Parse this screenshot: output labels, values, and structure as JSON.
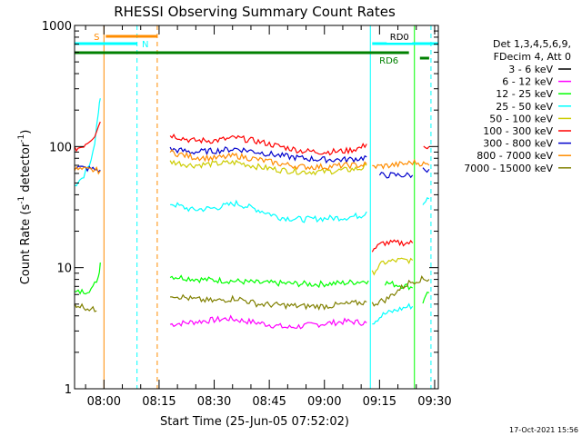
{
  "chart_data": {
    "type": "line",
    "title": "RHESSI Observing Summary Count Rates",
    "xlabel": "Start Time (25-Jun-05 07:52:02)",
    "ylabel_main": "Count Rate (s",
    "ylabel_sup1": "-1",
    "ylabel_mid": " detector",
    "ylabel_sup2": "-1",
    "ylabel_end": ")",
    "yscale": "log",
    "ylim": [
      1,
      1000
    ],
    "xlim_minutes": [
      0,
      99
    ],
    "y_ticks": [
      {
        "value": 1,
        "label": "1"
      },
      {
        "value": 10,
        "label": "10"
      },
      {
        "value": 100,
        "label": "100"
      },
      {
        "value": 1000,
        "label": "1000"
      }
    ],
    "x_ticks": [
      {
        "min": 8,
        "label": "08:00"
      },
      {
        "min": 23,
        "label": "08:15"
      },
      {
        "min": 38,
        "label": "08:30"
      },
      {
        "min": 53,
        "label": "08:45"
      },
      {
        "min": 68,
        "label": "09:00"
      },
      {
        "min": 83,
        "label": "09:15"
      },
      {
        "min": 98,
        "label": "09:30"
      }
    ],
    "legend_header": [
      "Det 1,3,4,5,6,9,",
      "FDecim 4, Att 0"
    ],
    "legend_placement": "right",
    "series": [
      {
        "name": "3 - 6 keV",
        "color": "#000000",
        "segments": []
      },
      {
        "name": "6 - 12 keV",
        "color": "#ff00ff",
        "segments": [
          [
            [
              26,
              3.4
            ],
            [
              34,
              3.6
            ],
            [
              42,
              3.8
            ],
            [
              50,
              3.5
            ],
            [
              58,
              3.2
            ],
            [
              66,
              3.4
            ],
            [
              74,
              3.6
            ],
            [
              79.5,
              3.5
            ]
          ]
        ]
      },
      {
        "name": "12 - 25 keV",
        "color": "#00ff00",
        "segments": [
          [
            [
              0,
              6.2
            ],
            [
              3,
              6.4
            ],
            [
              5,
              6.8
            ],
            [
              6.5,
              8.5
            ],
            [
              7,
              11
            ]
          ],
          [
            [
              26,
              8.5
            ],
            [
              34,
              8
            ],
            [
              42,
              7.8
            ],
            [
              50,
              7.5
            ],
            [
              58,
              7.4
            ],
            [
              66,
              7.3
            ],
            [
              74,
              7.5
            ],
            [
              80,
              7.8
            ]
          ],
          [
            [
              84.5,
              7.5
            ],
            [
              88,
              7.2
            ],
            [
              91,
              7
            ],
            [
              92,
              6.8
            ]
          ],
          [
            [
              94.8,
              5.2
            ],
            [
              95.5,
              6
            ],
            [
              96.5,
              6.2
            ]
          ]
        ]
      },
      {
        "name": "25 - 50 keV",
        "color": "#00ffff",
        "segments": [
          [
            [
              0,
              48
            ],
            [
              2,
              52
            ],
            [
              4,
              70
            ],
            [
              5.5,
              110
            ],
            [
              6.5,
              190
            ],
            [
              7,
              250
            ]
          ],
          [
            [
              26,
              34
            ],
            [
              32,
              30
            ],
            [
              38,
              31
            ],
            [
              44,
              34
            ],
            [
              50,
              30
            ],
            [
              56,
              26
            ],
            [
              62,
              25
            ],
            [
              68,
              25.5
            ],
            [
              74,
              26
            ],
            [
              78,
              27
            ],
            [
              79.5,
              29
            ]
          ],
          [
            [
              81,
              3.5
            ],
            [
              84,
              4.1
            ],
            [
              88,
              4.5
            ],
            [
              91,
              4.8
            ],
            [
              92,
              4.8
            ]
          ],
          [
            [
              94.8,
              33
            ],
            [
              95.5,
              36
            ],
            [
              96.5,
              37
            ]
          ]
        ]
      },
      {
        "name": "50 - 100 keV",
        "color": "#cccc00",
        "segments": [
          [
            [
              26,
              75
            ],
            [
              32,
              70
            ],
            [
              38,
              72
            ],
            [
              44,
              74
            ],
            [
              50,
              68
            ],
            [
              56,
              64
            ],
            [
              62,
              62
            ],
            [
              68,
              62
            ],
            [
              74,
              64
            ],
            [
              78,
              66
            ],
            [
              79.5,
              70
            ]
          ],
          [
            [
              81,
              9
            ],
            [
              84,
              11
            ],
            [
              88,
              11.5
            ],
            [
              92,
              11.5
            ]
          ]
        ]
      },
      {
        "name": "100 - 300 keV",
        "color": "#ff0000",
        "segments": [
          [
            [
              0,
              95
            ],
            [
              2,
              100
            ],
            [
              4,
              112
            ],
            [
              5.5,
              125
            ],
            [
              7,
              160
            ]
          ],
          [
            [
              26,
              125
            ],
            [
              32,
              112
            ],
            [
              38,
              112
            ],
            [
              44,
              118
            ],
            [
              50,
              110
            ],
            [
              56,
              100
            ],
            [
              62,
              92
            ],
            [
              68,
              90
            ],
            [
              74,
              92
            ],
            [
              78,
              98
            ],
            [
              79.5,
              105
            ]
          ],
          [
            [
              81,
              14
            ],
            [
              84,
              16
            ],
            [
              88,
              16
            ],
            [
              92,
              16
            ]
          ],
          [
            [
              95,
              100
            ],
            [
              96.5,
              100
            ]
          ]
        ]
      },
      {
        "name": "300 - 800 keV",
        "color": "#0000cc",
        "segments": [
          [
            [
              0,
              68
            ],
            [
              3,
              66
            ],
            [
              5,
              65
            ],
            [
              7,
              64
            ]
          ],
          [
            [
              26,
              95
            ],
            [
              32,
              90
            ],
            [
              38,
              92
            ],
            [
              44,
              96
            ],
            [
              50,
              90
            ],
            [
              56,
              84
            ],
            [
              62,
              80
            ],
            [
              68,
              78
            ],
            [
              74,
              78
            ],
            [
              78,
              80
            ],
            [
              79.5,
              82
            ]
          ],
          [
            [
              83,
              58
            ],
            [
              88,
              58
            ],
            [
              92,
              58
            ]
          ],
          [
            [
              94.8,
              65
            ],
            [
              96.5,
              65
            ]
          ]
        ]
      },
      {
        "name": "800 - 7000 keV",
        "color": "#ff8c00",
        "segments": [
          [
            [
              0,
              65
            ],
            [
              3,
              64
            ],
            [
              5,
              64
            ],
            [
              7,
              63
            ]
          ],
          [
            [
              26,
              90
            ],
            [
              32,
              82
            ],
            [
              38,
              80
            ],
            [
              44,
              84
            ],
            [
              50,
              78
            ],
            [
              56,
              72
            ],
            [
              62,
              68
            ],
            [
              68,
              68
            ],
            [
              74,
              70
            ],
            [
              78,
              70
            ],
            [
              79.5,
              72
            ]
          ],
          [
            [
              81,
              68
            ],
            [
              86,
              70
            ],
            [
              90,
              72
            ],
            [
              92,
              74
            ],
            [
              94,
              73
            ],
            [
              96.5,
              70
            ]
          ]
        ]
      },
      {
        "name": "7000 - 15000 keV",
        "color": "#808000",
        "segments": [
          [
            [
              0,
              5
            ],
            [
              2,
              4.8
            ],
            [
              4,
              4.6
            ],
            [
              6,
              4.4
            ]
          ],
          [
            [
              26,
              6
            ],
            [
              32,
              5.5
            ],
            [
              38,
              5.3
            ],
            [
              44,
              5.6
            ],
            [
              50,
              5
            ],
            [
              56,
              4.9
            ],
            [
              62,
              4.8
            ],
            [
              68,
              4.8
            ],
            [
              74,
              5
            ],
            [
              79.5,
              5.2
            ]
          ],
          [
            [
              81,
              5
            ],
            [
              85,
              5.5
            ],
            [
              88,
              6.5
            ],
            [
              91,
              7.5
            ],
            [
              94,
              8
            ],
            [
              96.5,
              8
            ]
          ]
        ]
      }
    ],
    "markers": [
      {
        "min": 8,
        "style": "solid",
        "color": "#ff8c00"
      },
      {
        "min": 17,
        "style": "dashed",
        "color": "#00ffff"
      },
      {
        "min": 22.5,
        "style": "dashed",
        "color": "#ff8c00"
      },
      {
        "min": 80.5,
        "style": "solid",
        "color": "#00ffff"
      },
      {
        "min": 92.5,
        "style": "solid",
        "color": "#00ff00"
      },
      {
        "min": 97,
        "style": "dashed",
        "color": "#00ffff"
      }
    ],
    "top_bars": [
      {
        "label": "S",
        "color": "#ff8c00",
        "start_min": 8.5,
        "end_min": 22.5,
        "level": 1,
        "label_side": "left"
      },
      {
        "label": "N",
        "color": "#00ffff",
        "start_min": 0,
        "end_min": 17,
        "level": 2,
        "label_side": "right"
      },
      {
        "label": "RD0",
        "color": "#00ffff",
        "start_min": 81,
        "end_min": 99,
        "level": 2,
        "label_side": "inline"
      },
      {
        "label": "RD6",
        "color": "#008000",
        "start_min": 0,
        "end_min": 91,
        "level": 3,
        "label_side": "below"
      },
      {
        "label": "",
        "color": "#008000",
        "start_min": 94,
        "end_min": 96.5,
        "level": 4,
        "label_side": "none"
      }
    ],
    "timestamp": "17-Oct-2021 15:56"
  }
}
